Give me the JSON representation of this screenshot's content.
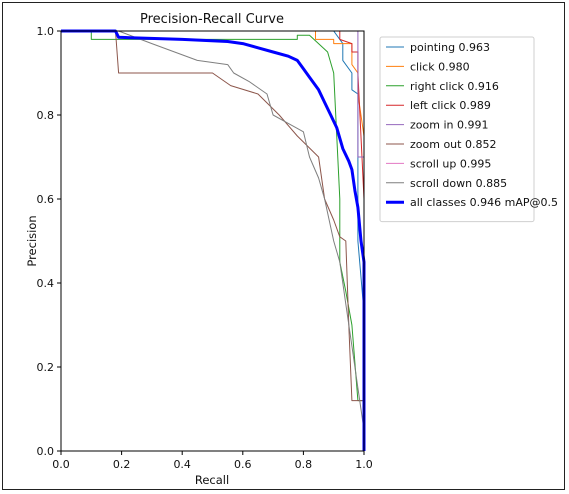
{
  "chart_data": {
    "type": "line",
    "title": "Precision-Recall Curve",
    "xlabel": "Recall",
    "ylabel": "Precision",
    "xlim": [
      0,
      1
    ],
    "ylim": [
      0,
      1
    ],
    "xticks": [
      "0.0",
      "0.2",
      "0.4",
      "0.6",
      "0.8",
      "1.0"
    ],
    "yticks": [
      "0.0",
      "0.2",
      "0.4",
      "0.6",
      "0.8",
      "1.0"
    ],
    "grid": false,
    "legend_position": "outside-right",
    "series": [
      {
        "name": "pointing 0.963",
        "color": "#1f77b4",
        "width": 1,
        "x": [
          0,
          0.1,
          0.9,
          0.93,
          0.93,
          0.96,
          0.96,
          0.98,
          0.98,
          1.0,
          1.0
        ],
        "y": [
          1.0,
          1.0,
          1.0,
          0.97,
          0.93,
          0.9,
          0.86,
          0.85,
          0.5,
          0.33,
          0.0
        ]
      },
      {
        "name": "click 0.980",
        "color": "#ff7f0e",
        "width": 1,
        "x": [
          0,
          0.84,
          0.84,
          0.9,
          0.9,
          0.96,
          0.96,
          0.98,
          0.98,
          1.0,
          1.0
        ],
        "y": [
          1.0,
          1.0,
          0.98,
          0.98,
          0.97,
          0.97,
          0.92,
          0.9,
          0.85,
          0.75,
          0.0
        ]
      },
      {
        "name": "right click 0.916",
        "color": "#2ca02c",
        "width": 1,
        "x": [
          0,
          0.1,
          0.1,
          0.3,
          0.78,
          0.78,
          0.82,
          0.88,
          0.9,
          0.92,
          0.92,
          0.94,
          0.96,
          0.98,
          1.0,
          1.0
        ],
        "y": [
          1.0,
          1.0,
          0.98,
          0.98,
          0.98,
          0.99,
          0.99,
          0.95,
          0.9,
          0.6,
          0.45,
          0.38,
          0.3,
          0.12,
          0.12,
          0.0
        ]
      },
      {
        "name": "left click 0.989",
        "color": "#d62728",
        "width": 1,
        "x": [
          0,
          0.92,
          0.92,
          0.96,
          0.96,
          0.98,
          0.98,
          1.0,
          1.0
        ],
        "y": [
          1.0,
          1.0,
          0.98,
          0.97,
          0.95,
          0.95,
          0.9,
          0.6,
          0.0
        ]
      },
      {
        "name": "zoom in 0.991",
        "color": "#9467bd",
        "width": 1,
        "x": [
          0,
          0.98,
          0.98,
          1.0,
          1.0
        ],
        "y": [
          1.0,
          1.0,
          0.7,
          0.7,
          0.0
        ]
      },
      {
        "name": "zoom out 0.852",
        "color": "#8c564b",
        "width": 1,
        "x": [
          0,
          0.18,
          0.19,
          0.19,
          0.5,
          0.56,
          0.65,
          0.72,
          0.78,
          0.85,
          0.87,
          0.9,
          0.92,
          0.94,
          0.95,
          0.96,
          1.0,
          1.0
        ],
        "y": [
          1.0,
          1.0,
          0.9,
          0.9,
          0.9,
          0.87,
          0.85,
          0.8,
          0.75,
          0.7,
          0.6,
          0.55,
          0.51,
          0.5,
          0.3,
          0.12,
          0.12,
          0.0
        ]
      },
      {
        "name": "scroll up 0.995",
        "color": "#e377c2",
        "width": 1,
        "x": [
          0,
          1.0,
          1.0
        ],
        "y": [
          1.0,
          1.0,
          0.0
        ]
      },
      {
        "name": "scroll down 0.885",
        "color": "#7f7f7f",
        "width": 1,
        "x": [
          0,
          0.19,
          0.3,
          0.45,
          0.55,
          0.57,
          0.62,
          0.68,
          0.7,
          0.75,
          0.8,
          0.82,
          0.85,
          0.87,
          0.9,
          0.92,
          0.94,
          0.96,
          0.98,
          1.0,
          1.0
        ],
        "y": [
          1.0,
          1.0,
          0.97,
          0.93,
          0.92,
          0.9,
          0.88,
          0.85,
          0.8,
          0.78,
          0.76,
          0.7,
          0.65,
          0.6,
          0.5,
          0.45,
          0.35,
          0.25,
          0.15,
          0.05,
          0.0
        ]
      },
      {
        "name": "all classes 0.946 mAP@0.5",
        "color": "#0000ff",
        "width": 3,
        "x": [
          0,
          0.18,
          0.19,
          0.4,
          0.55,
          0.6,
          0.65,
          0.7,
          0.75,
          0.78,
          0.8,
          0.82,
          0.85,
          0.87,
          0.89,
          0.91,
          0.93,
          0.95,
          0.96,
          0.97,
          0.98,
          0.99,
          1.0,
          1.0
        ],
        "y": [
          1.0,
          1.0,
          0.985,
          0.98,
          0.975,
          0.97,
          0.96,
          0.95,
          0.94,
          0.93,
          0.91,
          0.89,
          0.86,
          0.83,
          0.8,
          0.77,
          0.72,
          0.69,
          0.67,
          0.62,
          0.58,
          0.5,
          0.45,
          0.0
        ]
      }
    ]
  }
}
